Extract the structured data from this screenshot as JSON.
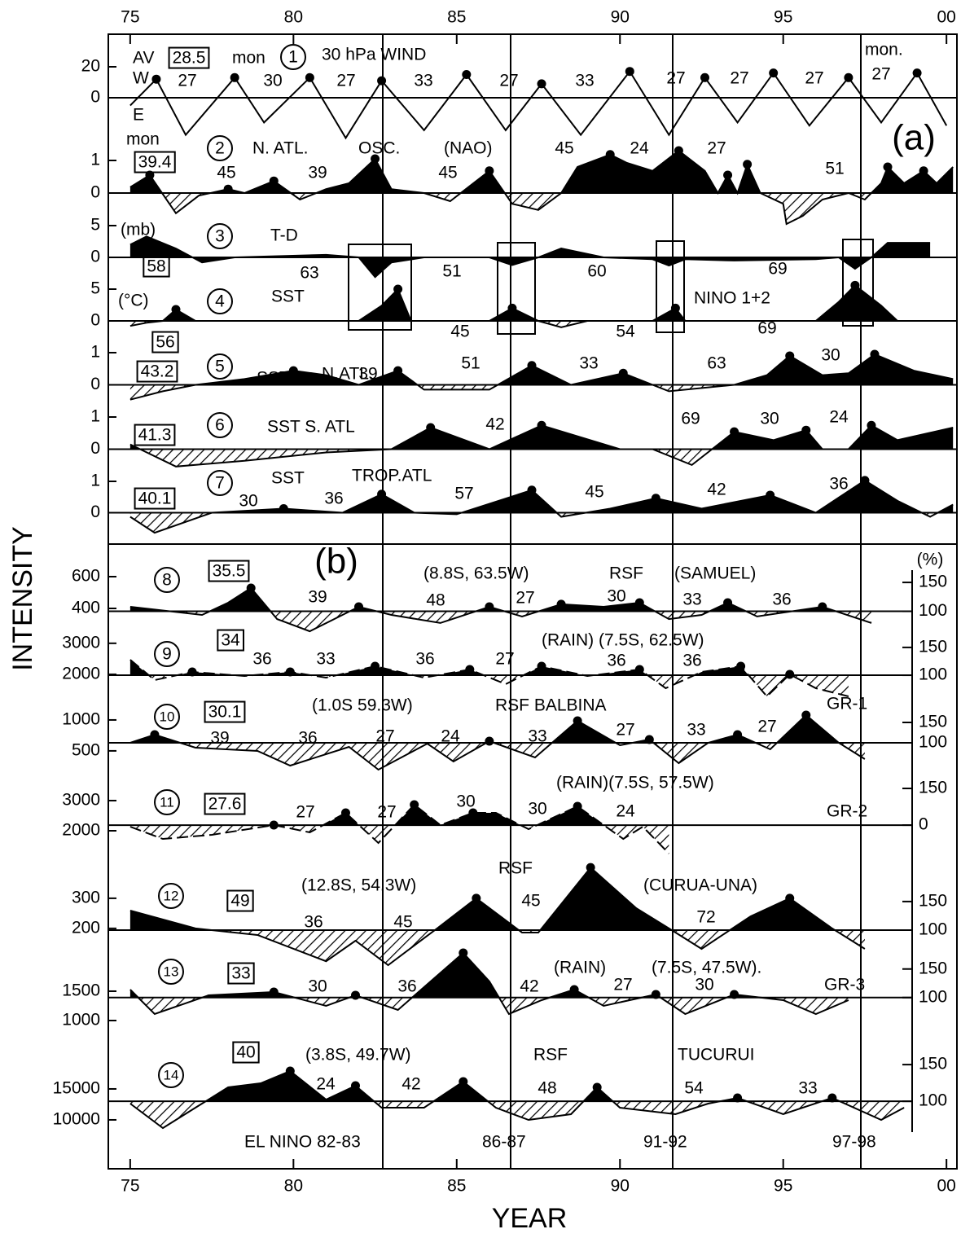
{
  "chart_data": {
    "type": "line",
    "x_label": "YEAR",
    "y_label": "INTENSITY",
    "y2_label": "(%)",
    "section_labels": [
      "(a)",
      "(b)"
    ],
    "events": [
      "EL NINO 82-83",
      "86-87",
      "91-92",
      "97-98"
    ],
    "xlim": [
      1974.33,
      2000.32
    ],
    "xticks": [
      {
        "value": 1975,
        "label": "75"
      },
      {
        "value": 1980,
        "label": "80"
      },
      {
        "value": 1985,
        "label": "85"
      },
      {
        "value": 1990,
        "label": "90"
      },
      {
        "value": 1995,
        "label": "95"
      },
      {
        "value": 2000,
        "label": "00"
      }
    ],
    "panels": [
      {
        "number": 1,
        "box": 28.5,
        "texts": [
          "AV",
          "mon",
          "30 hPa WIND",
          "W",
          "E",
          "mon."
        ],
        "periods": [
          27,
          30,
          27,
          33,
          27,
          33,
          27,
          27,
          27,
          27
        ],
        "ylim": [
          -30,
          30
        ],
        "yticks": [
          0,
          20
        ],
        "fill": "none",
        "markers": true,
        "x": [
          1975,
          1975.8,
          1976.7,
          1978.2,
          1979.1,
          1980.5,
          1981.6,
          1982.7,
          1984,
          1985.3,
          1986.5,
          1987.6,
          1988.8,
          1990.3,
          1991.5,
          1992.6,
          1993.6,
          1994.7,
          1995.8,
          1997,
          1998,
          1999.1,
          2000
        ],
        "values": [
          -5,
          12,
          -24,
          13,
          -16,
          13,
          -26,
          11,
          -21,
          15,
          -21,
          9,
          -24,
          17,
          -24,
          13,
          -16,
          16,
          -18,
          13,
          -16,
          16,
          -18
        ]
      },
      {
        "number": 2,
        "box": 39.4,
        "texts": [
          "mon",
          "N. ATL.",
          "OSC.",
          "(NAO)"
        ],
        "periods": [
          45,
          39,
          45,
          45,
          24,
          27,
          51
        ],
        "ylim": [
          -1,
          1.5
        ],
        "yticks": [
          0,
          1
        ],
        "fill": "split",
        "markers": true,
        "x": [
          1975,
          1975.6,
          1976.4,
          1977.1,
          1978,
          1978.5,
          1979.4,
          1980.2,
          1981,
          1981.7,
          1982.5,
          1983,
          1984,
          1984.8,
          1986,
          1986.7,
          1987.5,
          1988.2,
          1988.7,
          1989.7,
          1990.2,
          1991,
          1991.8,
          1992.6,
          1993,
          1993.3,
          1993.6,
          1993.9,
          1994.3,
          1995,
          1995.1,
          1995.6,
          1996.2,
          1997,
          1997.5,
          1998,
          1998.2,
          1998.7,
          1999.3,
          1999.7,
          2000.2
        ],
        "values": [
          0.18,
          0.55,
          -0.62,
          -0.08,
          0.12,
          0,
          0.37,
          -0.2,
          0.12,
          0.3,
          1.05,
          0.12,
          0,
          -0.25,
          0.68,
          -0.33,
          -0.52,
          0,
          0.8,
          1.18,
          0.93,
          0.68,
          1.3,
          0.68,
          0,
          0.55,
          0,
          0.88,
          0,
          -0.33,
          -0.95,
          -0.7,
          -0.2,
          0,
          -0.2,
          0.3,
          0.8,
          0.3,
          0.68,
          0.3,
          0.8
        ]
      },
      {
        "number": 3,
        "box": 58,
        "texts": [
          "(mb)",
          "T-D"
        ],
        "periods": [
          63,
          51,
          60,
          69
        ],
        "ylim": [
          -5,
          5
        ],
        "yticks": [
          0,
          5
        ],
        "fill": "solid",
        "markers": false,
        "x": [
          1975,
          1975.5,
          1976.4,
          1977.2,
          1978.2,
          1981,
          1982,
          1982.5,
          1983,
          1984,
          1986,
          1986.7,
          1987.5,
          1988.2,
          1989.5,
          1991,
          1991.5,
          1992,
          1993.5,
          1996,
          1996.7,
          1997.2,
          1997.7,
          1998.2,
          1999.5
        ],
        "values": [
          2,
          3.3,
          1.4,
          -0.8,
          0,
          0.4,
          0,
          -3.1,
          -0.8,
          0,
          0,
          -1.2,
          0,
          1.4,
          0,
          -0.3,
          -1.3,
          -0.3,
          -0.5,
          -0.3,
          0,
          -1.8,
          0,
          2.3,
          2.3
        ]
      },
      {
        "number": 4,
        "box": 56,
        "texts": [
          "(°C)",
          "SST",
          "NINO 1+2"
        ],
        "periods": [
          45,
          54,
          69
        ],
        "ylim": [
          -5,
          5
        ],
        "yticks": [
          0,
          5
        ],
        "fill": "split",
        "markers": true,
        "x": [
          1975,
          1975.5,
          1976,
          1976.4,
          1977,
          1982,
          1982.7,
          1983.2,
          1983.6,
          1986,
          1986.7,
          1987.5,
          1988.2,
          1989,
          1991,
          1991.7,
          1992,
          1996,
          1996.7,
          1997.2,
          1998,
          1998.5,
          2000
        ],
        "values": [
          -0.8,
          -0.3,
          0,
          1.8,
          0,
          0,
          2.4,
          5,
          0,
          0,
          2,
          0,
          -1,
          0,
          0,
          2,
          0,
          0,
          3,
          5.6,
          2.4,
          0,
          0
        ]
      },
      {
        "number": 5,
        "box": 43.2,
        "texts": [
          "SST",
          "N.ATL."
        ],
        "periods": [
          39,
          51,
          33,
          63,
          30
        ],
        "ylim": [
          -1,
          1
        ],
        "yticks": [
          0,
          1
        ],
        "fill": "split",
        "markers": true,
        "x": [
          1975,
          1976,
          1977,
          1978.5,
          1980,
          1981,
          1982,
          1983.2,
          1984,
          1986,
          1987.3,
          1988.5,
          1990.1,
          1991.5,
          1993.5,
          1994.5,
          1995.2,
          1996.2,
          1997,
          1997.8,
          1999,
          2000.2
        ],
        "values": [
          -0.46,
          -0.2,
          0,
          0.18,
          0.44,
          0.3,
          0,
          0.44,
          -0.15,
          -0.15,
          0.6,
          0,
          0.36,
          -0.2,
          0,
          0.3,
          0.9,
          0.3,
          0.36,
          0.95,
          0.44,
          0.18
        ]
      },
      {
        "number": 6,
        "box": 41.3,
        "texts": [
          "SST S. ATL"
        ],
        "periods": [
          42,
          69,
          30,
          24
        ],
        "ylim": [
          -1,
          1
        ],
        "yticks": [
          0,
          1
        ],
        "fill": "split",
        "markers": true,
        "x": [
          1975,
          1976.4,
          1978.5,
          1981,
          1983,
          1984.2,
          1986,
          1987.6,
          1990,
          1991,
          1992.2,
          1993.5,
          1994.7,
          1995.7,
          1996.2,
          1997,
          1997.7,
          1998.5,
          2000.2
        ],
        "values": [
          0.15,
          -0.54,
          -0.36,
          -0.1,
          0,
          0.67,
          0,
          0.74,
          0,
          0,
          -0.49,
          0.54,
          0.28,
          0.59,
          0,
          0,
          0.74,
          0.28,
          0.67
        ]
      },
      {
        "number": 7,
        "box": 40.1,
        "texts": [
          "SST",
          "TROP.ATL"
        ],
        "periods": [
          30,
          36,
          57,
          45,
          42,
          36
        ],
        "ylim": [
          -1,
          1
        ],
        "yticks": [
          0,
          1
        ],
        "fill": "split",
        "markers": true,
        "x": [
          1975,
          1975.75,
          1977.5,
          1979.7,
          1981.5,
          1982.7,
          1983.7,
          1985,
          1987.3,
          1988.2,
          1989.7,
          1991.1,
          1992.5,
          1994.6,
          1996,
          1997.5,
          1998.5,
          1999.5,
          2000.2
        ],
        "values": [
          -0.13,
          -0.64,
          0,
          0.13,
          0,
          0.59,
          0,
          -0.05,
          0.72,
          -0.13,
          0.13,
          0.46,
          0.13,
          0.56,
          0,
          1.03,
          0.38,
          -0.13,
          0.26
        ]
      },
      {
        "number": 8,
        "box": 35.5,
        "texts": [
          "(8.8S, 63.5W)",
          "RSF",
          "(SAMUEL)"
        ],
        "periods": [
          39,
          48,
          27,
          30,
          33,
          36
        ],
        "ylim": [
          200,
          800
        ],
        "yticks": [
          400,
          600
        ],
        "y2lim": [
          50,
          215
        ],
        "y2ticks": [
          100,
          150
        ],
        "fill": "split",
        "markers": true,
        "x": [
          1975,
          1977.2,
          1978,
          1978.7,
          1979.5,
          1980.5,
          1982,
          1983,
          1984.5,
          1986,
          1987,
          1988.2,
          1989.5,
          1990.6,
          1991.5,
          1992.5,
          1993.3,
          1994.2,
          1996.2,
          1997.7
        ],
        "values": [
          410,
          359,
          436,
          528,
          333,
          256,
          410,
          359,
          308,
          410,
          349,
          426,
          410,
          436,
          333,
          359,
          436,
          349,
          410,
          308
        ]
      },
      {
        "number": 9,
        "box": 34.0,
        "texts": [
          "(RAIN) (7.5S, 62.5W)",
          "GR-1"
        ],
        "periods": [
          36,
          33,
          36,
          27,
          36,
          36
        ],
        "ylim": [
          950,
          3100
        ],
        "yticks": [
          2000,
          3000
        ],
        "y2lim": [
          43,
          163
        ],
        "y2ticks": [
          100,
          150
        ],
        "fill": "split",
        "markers": true,
        "dashed": true,
        "x": [
          1975,
          1975.75,
          1976.9,
          1978.5,
          1979.9,
          1981,
          1982.5,
          1984,
          1985.4,
          1986.5,
          1987.6,
          1989,
          1990.6,
          1991.4,
          1992.5,
          1993.7,
          1994.5,
          1995.2,
          1996,
          1997
        ],
        "values": [
          2471,
          1815,
          2077,
          1946,
          2077,
          1894,
          2261,
          1894,
          2156,
          1684,
          2261,
          1946,
          2156,
          1553,
          2077,
          2261,
          1291,
          1999,
          1553,
          1291
        ]
      },
      {
        "number": 10,
        "box": 30.1,
        "texts": [
          "(1.0S 59.3W)",
          "RSF BALBINA"
        ],
        "periods": [
          39,
          36,
          27,
          24,
          33,
          27,
          33,
          27
        ],
        "ylim": [
          130,
          1210
        ],
        "yticks": [
          500,
          1000
        ],
        "y2lim": [
          24,
          188
        ],
        "y2ticks": [
          100,
          150
        ],
        "fill": "split",
        "markers": true,
        "x": [
          1975,
          1975.75,
          1977,
          1978.9,
          1979.9,
          1981.7,
          1982.6,
          1984.1,
          1984.9,
          1986,
          1987.4,
          1988.7,
          1990,
          1990.9,
          1991.8,
          1992.7,
          1993.6,
          1994.6,
          1995.7,
          1996.7,
          1997.5
        ],
        "values": [
          630,
          762,
          551,
          499,
          262,
          565,
          196,
          617,
          328,
          657,
          393,
          986,
          591,
          683,
          301,
          630,
          762,
          525,
          1078,
          630,
          367
        ]
      },
      {
        "number": 11,
        "box": 27.6,
        "texts": [
          "(RAIN)(7.5S, 57.5W)",
          "GR-2"
        ],
        "periods": [
          27,
          27,
          30,
          30,
          24
        ],
        "ylim": [
          1190,
          3890
        ],
        "yticks": [
          2000,
          3000
        ],
        "y2lim": [
          -123,
          210
        ],
        "y2ticks": [
          0,
          150
        ],
        "fill": "split",
        "markers": true,
        "dashed": true,
        "x": [
          1975,
          1976,
          1977.5,
          1979.4,
          1980.5,
          1981.6,
          1982.6,
          1983.7,
          1984.5,
          1985.5,
          1986.2,
          1987.2,
          1988.7,
          1989.5,
          1990.1,
          1990.7,
          1991.5
        ],
        "values": [
          2135,
          1730,
          1865,
          2189,
          1946,
          2594,
          1595,
          2864,
          2189,
          2594,
          2594,
          2054,
          2810,
          2189,
          1730,
          2135,
          1244
        ]
      },
      {
        "number": 12,
        "box": 49,
        "texts": [
          "RSF",
          "(12.8S, 54.3W)",
          "(CURUA-UNA)"
        ],
        "periods": [
          36,
          45,
          45,
          72
        ],
        "ylim": [
          105,
          443
        ],
        "yticks": [
          200,
          300
        ],
        "y2lim": [
          53,
          231
        ],
        "y2ticks": [
          100,
          150
        ],
        "fill": "split",
        "markers": true,
        "x": [
          1975,
          1977,
          1978.9,
          1981,
          1981.9,
          1982.9,
          1984.4,
          1985.6,
          1987,
          1987.5,
          1989.1,
          1990.5,
          1991.5,
          1992.5,
          1994,
          1995.2,
          1996.5,
          1997.5
        ],
        "values": [
          259,
          200,
          178,
          91,
          159,
          78,
          200,
          300,
          186,
          186,
          402,
          267,
          200,
          132,
          240,
          300,
          200,
          132
        ]
      },
      {
        "number": 13,
        "box": 33,
        "texts": [
          "(RAIN)",
          "(7.5S, 47.5W).",
          "GR-3"
        ],
        "periods": [
          30,
          36,
          42,
          27,
          30
        ],
        "ylim": [
          486,
          2083
        ],
        "yticks": [
          1000,
          1500
        ],
        "y2lim": [
          7,
          171
        ],
        "y2ticks": [
          100,
          150
        ],
        "fill": "split",
        "markers": true,
        "x": [
          1975,
          1975.75,
          1977.4,
          1979.4,
          1981,
          1981.9,
          1983.2,
          1985.2,
          1986,
          1986.6,
          1987.6,
          1988.6,
          1989.5,
          1991.1,
          1992,
          1993.5,
          1995,
          1996,
          1997
        ],
        "values": [
          1528,
          1111,
          1431,
          1486,
          1250,
          1431,
          1181,
          2153,
          1667,
          1111,
          1347,
          1528,
          1250,
          1444,
          1111,
          1444,
          1347,
          1111,
          1347
        ]
      },
      {
        "number": 14,
        "box": 40,
        "texts": [
          "(3.8S, 49.7W)",
          "RSF",
          "TUCURUI"
        ],
        "periods": [
          24,
          42,
          48,
          54,
          33
        ],
        "ylim": [
          2100,
          21180
        ],
        "yticks": [
          10000,
          15000
        ],
        "y2lim": [
          8,
          169
        ],
        "y2ticks": [
          100,
          150
        ],
        "fill": "split",
        "markers": true,
        "x": [
          1975,
          1976,
          1977,
          1978,
          1979,
          1979.9,
          1981,
          1981.9,
          1982.7,
          1984,
          1985.2,
          1986.2,
          1987.2,
          1988.5,
          1989.3,
          1990,
          1991.7,
          1992.7,
          1993.6,
          1995,
          1996.5,
          1998,
          1998.7
        ],
        "values": [
          12628,
          8680,
          11970,
          15260,
          15918,
          17892,
          13286,
          15523,
          11970,
          11970,
          16181,
          11970,
          9996,
          10917,
          15260,
          11970,
          10917,
          12628,
          13549,
          10917,
          13549,
          9996,
          11970
        ]
      }
    ]
  }
}
